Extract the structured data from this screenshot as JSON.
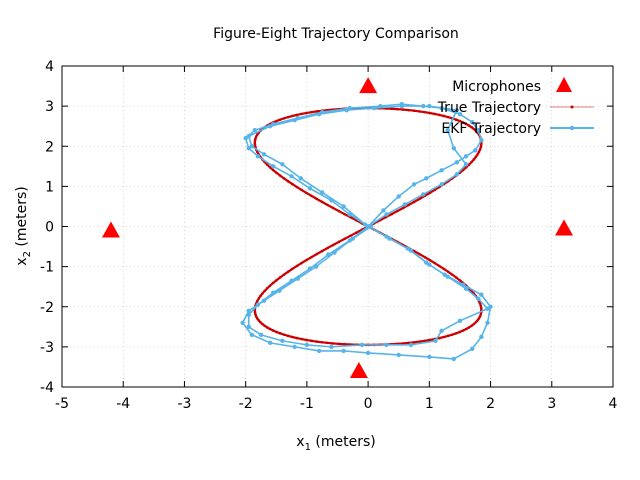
{
  "chart_data": {
    "type": "scatter",
    "title": "Figure-Eight Trajectory Comparison",
    "xlabel": {
      "base": "x",
      "sub": "1",
      "rest": " (meters)"
    },
    "ylabel": {
      "base": "x",
      "sub": "2",
      "rest": " (meters)"
    },
    "xlim": [
      -5,
      4
    ],
    "ylim": [
      -4,
      4
    ],
    "xticks": [
      -5,
      -4,
      -3,
      -2,
      -1,
      0,
      1,
      2,
      3,
      4
    ],
    "yticks": [
      -4,
      -3,
      -2,
      -1,
      0,
      1,
      2,
      3,
      4
    ],
    "grid": true,
    "legend_position": "top-right",
    "colors": {
      "microphones": "#ff0000",
      "true": "#cc0000",
      "ekf": "#56b4e9"
    },
    "series": [
      {
        "name": "Microphones",
        "style": "triangles",
        "points": [
          [
            0.0,
            3.5
          ],
          [
            -4.2,
            -0.1
          ],
          [
            3.2,
            -0.05
          ],
          [
            -0.15,
            -3.6
          ]
        ]
      },
      {
        "name": "True Trajectory",
        "style": "dots-line",
        "parametric": {
          "ax": 1.85,
          "ay": 2.95,
          "samples": 240
        }
      },
      {
        "name": "EKF Trajectory",
        "style": "line-points",
        "points": [
          [
            0.0,
            0.0
          ],
          [
            0.25,
            0.4
          ],
          [
            0.5,
            0.75
          ],
          [
            0.75,
            1.05
          ],
          [
            0.95,
            1.2
          ],
          [
            1.2,
            1.4
          ],
          [
            1.45,
            1.6
          ],
          [
            1.6,
            1.75
          ],
          [
            1.75,
            1.9
          ],
          [
            1.85,
            2.15
          ],
          [
            1.8,
            2.4
          ],
          [
            1.7,
            2.6
          ],
          [
            1.5,
            2.8
          ],
          [
            1.2,
            2.95
          ],
          [
            0.9,
            3.0
          ],
          [
            0.55,
            3.05
          ],
          [
            0.2,
            3.0
          ],
          [
            -0.3,
            2.95
          ],
          [
            -0.75,
            2.85
          ],
          [
            -1.15,
            2.7
          ],
          [
            -1.55,
            2.55
          ],
          [
            -1.85,
            2.4
          ],
          [
            -2.0,
            2.2
          ],
          [
            -1.95,
            1.95
          ],
          [
            -1.8,
            1.75
          ],
          [
            -1.55,
            1.5
          ],
          [
            -1.25,
            1.25
          ],
          [
            -0.95,
            0.95
          ],
          [
            -0.6,
            0.65
          ],
          [
            -0.3,
            0.3
          ],
          [
            0.0,
            0.0
          ],
          [
            0.35,
            -0.3
          ],
          [
            0.7,
            -0.6
          ],
          [
            1.0,
            -0.95
          ],
          [
            1.3,
            -1.25
          ],
          [
            1.6,
            -1.55
          ],
          [
            1.8,
            -1.8
          ],
          [
            1.95,
            -2.05
          ],
          [
            1.5,
            -2.35
          ],
          [
            1.2,
            -2.6
          ],
          [
            1.1,
            -2.85
          ],
          [
            0.7,
            -2.95
          ],
          [
            0.3,
            -2.95
          ],
          [
            -0.1,
            -2.95
          ],
          [
            -0.6,
            -3.0
          ],
          [
            -1.0,
            -2.95
          ],
          [
            -1.4,
            -2.85
          ],
          [
            -1.75,
            -2.7
          ],
          [
            -1.95,
            -2.5
          ],
          [
            -1.95,
            -2.2
          ],
          [
            -1.8,
            -1.95
          ],
          [
            -1.55,
            -1.65
          ],
          [
            -1.25,
            -1.35
          ],
          [
            -0.95,
            -1.05
          ],
          [
            -0.65,
            -0.7
          ],
          [
            -0.3,
            -0.35
          ],
          [
            0.0,
            0.0
          ],
          [
            0.3,
            0.3
          ],
          [
            0.6,
            0.55
          ],
          [
            0.9,
            0.8
          ],
          [
            1.2,
            1.05
          ],
          [
            1.45,
            1.3
          ],
          [
            1.6,
            1.55
          ],
          [
            1.4,
            1.95
          ],
          [
            1.3,
            2.4
          ],
          [
            1.45,
            2.9
          ],
          [
            1.0,
            3.0
          ],
          [
            0.55,
            3.0
          ],
          [
            0.1,
            2.95
          ],
          [
            -0.35,
            2.9
          ],
          [
            -0.8,
            2.8
          ],
          [
            -1.2,
            2.65
          ],
          [
            -1.6,
            2.5
          ],
          [
            -1.95,
            2.25
          ],
          [
            -1.9,
            2.0
          ],
          [
            -1.7,
            1.8
          ],
          [
            -1.4,
            1.55
          ],
          [
            -1.1,
            1.2
          ],
          [
            -0.75,
            0.85
          ],
          [
            -0.4,
            0.5
          ],
          [
            -0.05,
            0.05
          ],
          [
            0.3,
            -0.25
          ],
          [
            0.65,
            -0.55
          ],
          [
            0.95,
            -0.9
          ],
          [
            1.25,
            -1.2
          ],
          [
            1.55,
            -1.45
          ],
          [
            1.85,
            -1.7
          ],
          [
            2.0,
            -2.0
          ],
          [
            1.95,
            -2.4
          ],
          [
            1.85,
            -2.75
          ],
          [
            1.7,
            -3.05
          ],
          [
            1.4,
            -3.3
          ],
          [
            1.0,
            -3.25
          ],
          [
            0.5,
            -3.2
          ],
          [
            0.0,
            -3.15
          ],
          [
            -0.4,
            -3.1
          ],
          [
            -0.8,
            -3.1
          ],
          [
            -1.2,
            -3.0
          ],
          [
            -1.6,
            -2.9
          ],
          [
            -1.9,
            -2.7
          ],
          [
            -2.05,
            -2.4
          ],
          [
            -1.95,
            -2.1
          ],
          [
            -1.7,
            -1.85
          ],
          [
            -1.45,
            -1.6
          ],
          [
            -1.15,
            -1.3
          ],
          [
            -0.85,
            -1.0
          ],
          [
            -0.55,
            -0.65
          ],
          [
            -0.25,
            -0.3
          ],
          [
            0.05,
            0.0
          ]
        ]
      }
    ]
  }
}
